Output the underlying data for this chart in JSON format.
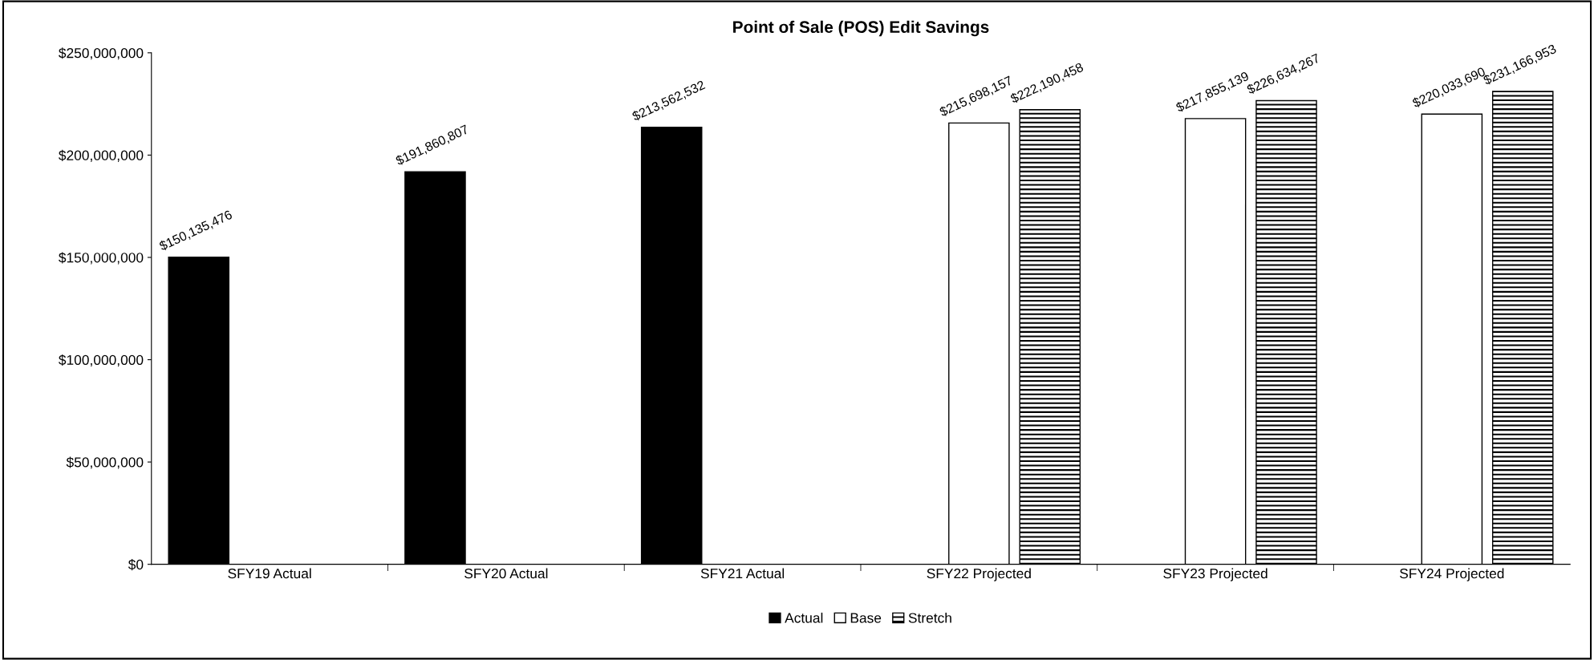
{
  "chart_data": {
    "type": "bar",
    "title": "Point of Sale (POS) Edit Savings",
    "categories": [
      "SFY19 Actual",
      "SFY20 Actual",
      "SFY21 Actual",
      "SFY22 Projected",
      "SFY23 Projected",
      "SFY24 Projected"
    ],
    "series": [
      {
        "name": "Actual",
        "color": "#000000",
        "values": [
          150135476,
          191860807,
          213562532,
          null,
          null,
          null
        ],
        "value_labels": [
          "$150,135,476",
          "$191,860,807",
          "$213,562,532",
          null,
          null,
          null
        ]
      },
      {
        "name": "Base",
        "color": "#ffffff",
        "values": [
          null,
          null,
          null,
          215698157,
          217855139,
          220033690
        ],
        "value_labels": [
          null,
          null,
          null,
          "$215,698,157",
          "$217,855,139",
          "$220,033,690"
        ]
      },
      {
        "name": "Stretch",
        "color": "#000000",
        "values": [
          null,
          null,
          null,
          222190458,
          226634267,
          231166953
        ],
        "value_labels": [
          null,
          null,
          null,
          "$222,190,458",
          "$226,634,267",
          "$231,166,953"
        ]
      }
    ],
    "ylim": [
      0,
      250000000
    ],
    "yticks": [
      {
        "value": 0,
        "label": "$0"
      },
      {
        "value": 50000000,
        "label": "$50,000,000"
      },
      {
        "value": 100000000,
        "label": "$100,000,000"
      },
      {
        "value": 150000000,
        "label": "$150,000,000"
      },
      {
        "value": 200000000,
        "label": "$200,000,000"
      },
      {
        "value": 250000000,
        "label": "$250,000,000"
      }
    ],
    "grid": false,
    "legend": "bottom"
  }
}
